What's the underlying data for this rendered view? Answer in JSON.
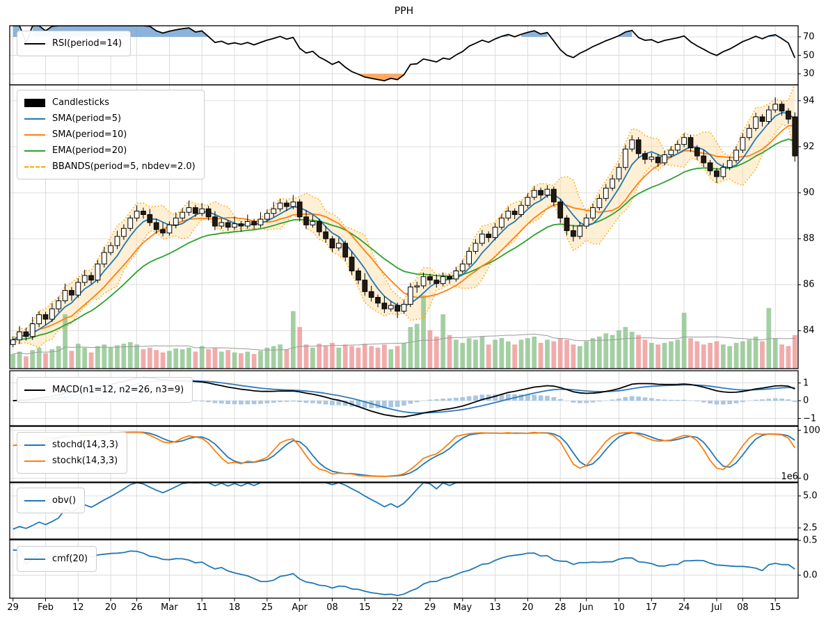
{
  "title": "PPH",
  "panels": {
    "rsi": {
      "legend": [
        "RSI(period=14)"
      ],
      "yticks": [
        {
          "v": 70,
          "label": "70"
        },
        {
          "v": 50,
          "label": "50"
        },
        {
          "v": 30,
          "label": "30"
        }
      ]
    },
    "price": {
      "legend": [
        "Candlesticks",
        "SMA(period=5)",
        "SMA(period=10)",
        "EMA(period=20)",
        "BBANDS(period=5, nbdev=2.0)"
      ],
      "yticks": [
        {
          "v": 94,
          "label": "94"
        },
        {
          "v": 92,
          "label": "92"
        },
        {
          "v": 90,
          "label": "90"
        },
        {
          "v": 88,
          "label": "88"
        },
        {
          "v": 86,
          "label": "86"
        },
        {
          "v": 84,
          "label": "84"
        }
      ]
    },
    "macd": {
      "legend": [
        "MACD(n1=12, n2=26, n3=9)"
      ],
      "yticks": [
        {
          "v": 1,
          "label": "1"
        },
        {
          "v": 0,
          "label": "0"
        },
        {
          "v": -1,
          "label": "−1"
        }
      ]
    },
    "stoch": {
      "legend": [
        "stochd(14,3,3)",
        "stochk(14,3,3)"
      ],
      "yticks": [
        {
          "v": 100,
          "label": "100"
        },
        {
          "v": 0,
          "label": "0"
        }
      ]
    },
    "obv": {
      "legend": [
        "obv()"
      ],
      "yticks": [
        {
          "v": 5000000,
          "label": "5.0"
        },
        {
          "v": 2500000,
          "label": "2.5"
        }
      ],
      "offset_label": "1e6"
    },
    "cmf": {
      "legend": [
        "cmf(20)"
      ],
      "yticks": [
        {
          "v": 0.5,
          "label": "0.5"
        },
        {
          "v": 0.0,
          "label": "0.0"
        }
      ]
    }
  },
  "colors": {
    "up_candle": "#ffffff",
    "down_candle": "#211a12",
    "candle_edge": "#000000",
    "wick": "#000000",
    "sma5": "#1f77b4",
    "sma10": "#ff7f0e",
    "ema20": "#2ca02c",
    "bband_line": "#ffa500",
    "bband_fill": "rgba(255,220,160,0.45)",
    "vol_up": "rgba(140,195,140,0.8)",
    "vol_down": "rgba(238,150,150,0.8)",
    "vol_ma": "#999999",
    "rsi_line": "#000000",
    "rsi_ob_fill": "rgba(110,160,210,0.8)",
    "rsi_os_fill": "rgba(255,160,80,0.9)",
    "macd_line": "#000000",
    "macd_signal": "#2f7ab8",
    "macd_hist": "#a9c7e4",
    "stoch_d": "#1f77b4",
    "stoch_k": "#ff7f0e",
    "obv": "#1f77b4",
    "cmf": "#1f77b4",
    "grid": "#d9d9d9",
    "spine": "#000000",
    "text": "#000000"
  },
  "chart_data": {
    "type": "candlestick",
    "symbol": "PPH",
    "x_tick_labels": [
      "29",
      "Feb",
      "12",
      "20",
      "26",
      "Mar",
      "11",
      "18",
      "25",
      "Apr",
      "08",
      "15",
      "22",
      "29",
      "May",
      "13",
      "20",
      "28",
      "Jun",
      "10",
      "17",
      "24",
      "Jul",
      "08",
      "15"
    ],
    "x_tick_indices": [
      0,
      5,
      10,
      15,
      19,
      24,
      29,
      34,
      39,
      44,
      49,
      54,
      59,
      64,
      69,
      74,
      79,
      84,
      88,
      93,
      98,
      103,
      108,
      112,
      117
    ],
    "indicators": {
      "rsi_period": 14,
      "sma_fast": 5,
      "sma_slow": 10,
      "ema_period": 20,
      "bbands": {
        "period": 5,
        "nbdev": 2.0
      },
      "macd": {
        "n1": 12,
        "n2": 26,
        "n3": 9
      },
      "stoch": {
        "fastk": 14,
        "slowk": 3,
        "slowd": 3
      },
      "cmf_period": 20,
      "volume_ma": 20,
      "obv_start": 2400000,
      "rsi_overbought": 70,
      "rsi_oversold": 30
    },
    "ohlcv_columns": [
      "open",
      "high",
      "low",
      "close",
      "volume"
    ],
    "ohlcv": [
      [
        83.4,
        83.75,
        83.28,
        83.6,
        180000
      ],
      [
        83.6,
        84.2,
        83.42,
        83.95,
        210000
      ],
      [
        83.95,
        84.13,
        83.57,
        83.75,
        150000
      ],
      [
        83.75,
        84.6,
        83.6,
        84.3,
        230000
      ],
      [
        84.3,
        84.85,
        84.15,
        84.7,
        260000
      ],
      [
        84.7,
        84.82,
        84.25,
        84.5,
        190000
      ],
      [
        84.5,
        85.2,
        84.38,
        84.95,
        240000
      ],
      [
        84.95,
        85.48,
        84.8,
        85.3,
        280000
      ],
      [
        85.3,
        86.05,
        85.18,
        85.75,
        680000
      ],
      [
        85.75,
        85.9,
        85.3,
        85.55,
        220000
      ],
      [
        85.55,
        86.28,
        85.43,
        86.1,
        310000
      ],
      [
        86.1,
        86.65,
        85.95,
        86.4,
        260000
      ],
      [
        86.4,
        86.55,
        86.02,
        86.2,
        200000
      ],
      [
        86.2,
        87.08,
        86.08,
        86.9,
        280000
      ],
      [
        86.9,
        87.65,
        86.75,
        87.4,
        300000
      ],
      [
        87.4,
        87.85,
        87.28,
        87.7,
        260000
      ],
      [
        87.7,
        88.35,
        87.55,
        88.1,
        290000
      ],
      [
        88.1,
        88.63,
        87.95,
        88.45,
        310000
      ],
      [
        88.45,
        89.02,
        88.33,
        88.9,
        330000
      ],
      [
        88.9,
        89.45,
        88.75,
        89.2,
        300000
      ],
      [
        89.2,
        89.35,
        88.87,
        89.05,
        240000
      ],
      [
        89.05,
        89.3,
        88.55,
        88.7,
        260000
      ],
      [
        88.7,
        88.88,
        88.22,
        88.4,
        230000
      ],
      [
        88.4,
        88.7,
        88.1,
        88.25,
        200000
      ],
      [
        88.25,
        88.75,
        88.13,
        88.6,
        220000
      ],
      [
        88.6,
        89.15,
        88.45,
        88.9,
        250000
      ],
      [
        88.9,
        89.33,
        88.78,
        89.15,
        240000
      ],
      [
        89.15,
        89.65,
        89.0,
        89.35,
        260000
      ],
      [
        89.35,
        89.47,
        88.95,
        89.1,
        210000
      ],
      [
        89.1,
        89.55,
        88.98,
        89.3,
        280000
      ],
      [
        89.3,
        89.42,
        88.8,
        88.95,
        240000
      ],
      [
        88.95,
        89.2,
        88.37,
        88.55,
        260000
      ],
      [
        88.55,
        88.88,
        88.43,
        88.7,
        210000
      ],
      [
        88.7,
        88.82,
        88.35,
        88.5,
        230000
      ],
      [
        88.5,
        88.95,
        88.38,
        88.65,
        200000
      ],
      [
        88.65,
        88.77,
        88.3,
        88.55,
        190000
      ],
      [
        88.55,
        89.05,
        88.43,
        88.75,
        210000
      ],
      [
        88.75,
        88.87,
        88.42,
        88.6,
        180000
      ],
      [
        88.6,
        89.15,
        88.48,
        88.85,
        220000
      ],
      [
        88.85,
        89.28,
        88.73,
        89.1,
        260000
      ],
      [
        89.1,
        89.6,
        88.95,
        89.3,
        280000
      ],
      [
        89.3,
        89.73,
        89.18,
        89.55,
        300000
      ],
      [
        89.55,
        89.67,
        89.2,
        89.4,
        240000
      ],
      [
        89.4,
        89.9,
        89.28,
        89.6,
        720000
      ],
      [
        89.6,
        89.72,
        88.75,
        88.95,
        520000
      ],
      [
        88.95,
        89.25,
        88.42,
        88.6,
        300000
      ],
      [
        88.6,
        89.03,
        88.48,
        88.75,
        260000
      ],
      [
        88.75,
        88.87,
        88.12,
        88.3,
        310000
      ],
      [
        88.3,
        88.55,
        87.82,
        88.0,
        280000
      ],
      [
        88.0,
        88.12,
        87.42,
        87.6,
        320000
      ],
      [
        87.6,
        88.05,
        87.48,
        87.8,
        260000
      ],
      [
        87.8,
        87.92,
        87.02,
        87.2,
        300000
      ],
      [
        87.2,
        87.45,
        86.42,
        86.6,
        280000
      ],
      [
        86.6,
        86.72,
        86.02,
        86.2,
        260000
      ],
      [
        86.2,
        86.5,
        85.52,
        85.7,
        310000
      ],
      [
        85.7,
        85.95,
        85.27,
        85.45,
        280000
      ],
      [
        85.45,
        85.57,
        85.02,
        85.2,
        260000
      ],
      [
        85.2,
        85.5,
        84.77,
        84.95,
        300000
      ],
      [
        84.95,
        85.28,
        84.83,
        85.1,
        240000
      ],
      [
        85.1,
        85.22,
        84.55,
        84.85,
        280000
      ],
      [
        84.85,
        85.33,
        84.73,
        85.15,
        320000
      ],
      [
        85.15,
        86.08,
        85.03,
        85.9,
        520000
      ],
      [
        85.9,
        86.13,
        85.65,
        85.95,
        560000
      ],
      [
        85.95,
        86.53,
        85.83,
        86.35,
        920000
      ],
      [
        86.35,
        86.47,
        86.0,
        86.2,
        480000
      ],
      [
        86.2,
        86.45,
        85.87,
        86.05,
        400000
      ],
      [
        86.05,
        86.53,
        85.93,
        86.35,
        680000
      ],
      [
        86.35,
        86.47,
        86.05,
        86.25,
        420000
      ],
      [
        86.25,
        86.78,
        86.13,
        86.6,
        360000
      ],
      [
        86.6,
        87.08,
        86.48,
        86.9,
        320000
      ],
      [
        86.9,
        87.63,
        86.78,
        87.45,
        380000
      ],
      [
        87.45,
        87.98,
        87.33,
        87.8,
        360000
      ],
      [
        87.8,
        88.38,
        87.68,
        88.2,
        400000
      ],
      [
        88.2,
        88.32,
        87.85,
        88.05,
        300000
      ],
      [
        88.05,
        88.68,
        87.93,
        88.5,
        360000
      ],
      [
        88.5,
        89.08,
        88.38,
        88.9,
        380000
      ],
      [
        88.9,
        89.38,
        88.78,
        89.2,
        340000
      ],
      [
        89.2,
        89.32,
        88.85,
        89.05,
        300000
      ],
      [
        89.05,
        89.63,
        88.93,
        89.45,
        360000
      ],
      [
        89.45,
        89.98,
        89.33,
        89.8,
        380000
      ],
      [
        89.8,
        90.28,
        89.68,
        90.1,
        400000
      ],
      [
        90.1,
        90.22,
        89.7,
        89.9,
        320000
      ],
      [
        89.9,
        90.33,
        89.78,
        90.15,
        360000
      ],
      [
        90.15,
        90.27,
        89.4,
        89.6,
        340000
      ],
      [
        89.6,
        89.72,
        88.68,
        88.9,
        380000
      ],
      [
        88.9,
        89.02,
        88.15,
        88.35,
        360000
      ],
      [
        88.35,
        88.6,
        87.88,
        88.1,
        300000
      ],
      [
        88.1,
        88.73,
        87.98,
        88.55,
        280000
      ],
      [
        88.55,
        89.08,
        88.43,
        88.9,
        340000
      ],
      [
        88.9,
        89.53,
        88.78,
        89.35,
        380000
      ],
      [
        89.35,
        89.93,
        89.23,
        89.75,
        400000
      ],
      [
        89.75,
        90.38,
        89.63,
        90.2,
        440000
      ],
      [
        90.2,
        90.78,
        90.08,
        90.6,
        420000
      ],
      [
        90.6,
        91.28,
        90.48,
        91.1,
        480000
      ],
      [
        91.1,
        92.08,
        90.98,
        91.9,
        520000
      ],
      [
        91.9,
        92.5,
        91.78,
        92.3,
        460000
      ],
      [
        92.3,
        92.42,
        91.52,
        91.7,
        420000
      ],
      [
        91.7,
        91.82,
        91.25,
        91.45,
        360000
      ],
      [
        91.45,
        91.73,
        91.33,
        91.55,
        320000
      ],
      [
        91.55,
        91.67,
        91.12,
        91.3,
        300000
      ],
      [
        91.3,
        91.83,
        91.18,
        91.65,
        320000
      ],
      [
        91.65,
        92.03,
        91.53,
        91.85,
        340000
      ],
      [
        91.85,
        92.28,
        91.73,
        92.1,
        360000
      ],
      [
        92.1,
        92.58,
        91.98,
        92.4,
        700000
      ],
      [
        92.4,
        92.52,
        91.77,
        91.95,
        380000
      ],
      [
        91.95,
        92.07,
        91.42,
        91.6,
        340000
      ],
      [
        91.6,
        91.85,
        91.12,
        91.3,
        300000
      ],
      [
        91.3,
        91.42,
        90.77,
        90.95,
        320000
      ],
      [
        90.95,
        91.08,
        90.42,
        90.7,
        340000
      ],
      [
        90.7,
        91.28,
        90.58,
        91.1,
        300000
      ],
      [
        91.1,
        91.58,
        90.98,
        91.4,
        280000
      ],
      [
        91.4,
        92.03,
        91.28,
        91.85,
        320000
      ],
      [
        91.85,
        92.58,
        91.73,
        92.4,
        340000
      ],
      [
        92.4,
        92.98,
        92.28,
        92.8,
        360000
      ],
      [
        92.8,
        93.48,
        92.68,
        93.3,
        400000
      ],
      [
        93.3,
        93.42,
        92.88,
        93.1,
        340000
      ],
      [
        93.1,
        93.78,
        92.98,
        93.6,
        760000
      ],
      [
        93.6,
        94.15,
        93.48,
        93.85,
        380000
      ],
      [
        93.85,
        93.97,
        93.35,
        93.55,
        300000
      ],
      [
        93.55,
        93.67,
        93.0,
        93.2,
        280000
      ],
      [
        93.3,
        93.5,
        91.35,
        91.6,
        420000
      ]
    ]
  }
}
